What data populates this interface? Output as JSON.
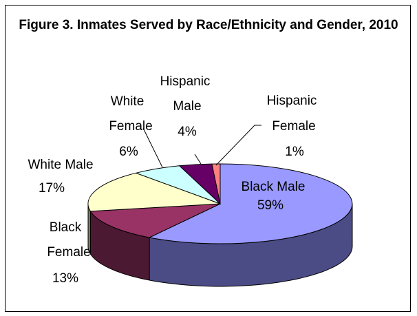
{
  "chart_data": {
    "type": "pie",
    "title": "Figure 3. Inmates Served by Race/Ethnicity and Gender, 2010",
    "slices": [
      {
        "label": "Black Male",
        "value": 59,
        "pct_label": "59%",
        "color": "#9999FF",
        "side_color": "#4B4B85"
      },
      {
        "label": "Black Female",
        "value": 13,
        "pct_label": "13%",
        "color": "#993366",
        "side_color": "#4C1933"
      },
      {
        "label": "White Male",
        "value": 17,
        "pct_label": "17%",
        "color": "#FFFFCC",
        "side_color": "#808066"
      },
      {
        "label": "White Female",
        "value": 6,
        "pct_label": "6%",
        "color": "#CCFFFF",
        "side_color": "#668080"
      },
      {
        "label": "Hispanic Male",
        "value": 4,
        "pct_label": "4%",
        "color": "#660066",
        "side_color": "#330033"
      },
      {
        "label": "Hispanic Female",
        "value": 1,
        "pct_label": "1%",
        "color": "#FF8080",
        "side_color": "#804040"
      }
    ],
    "legend": "none",
    "style": "3d-pie"
  }
}
